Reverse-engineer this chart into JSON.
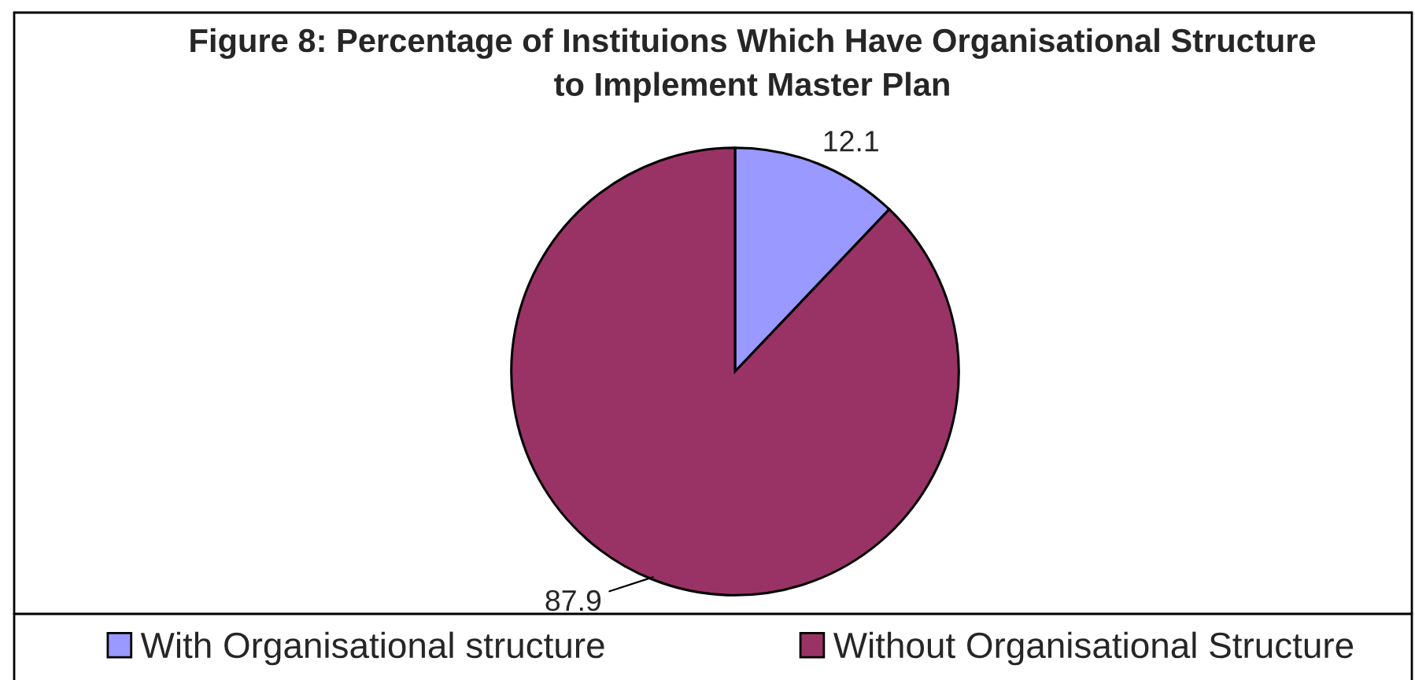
{
  "chart_data": {
    "type": "pie",
    "title": "Figure 8: Percentage of Instituions Which Have Organisational Structure\nto Implement Master Plan",
    "categories": [
      "With Organisational structure",
      "Without Organisational Structure"
    ],
    "values": [
      12.1,
      87.9
    ],
    "colors": [
      "#9999ff",
      "#993366"
    ],
    "data_labels": true,
    "legend": "bottom"
  }
}
